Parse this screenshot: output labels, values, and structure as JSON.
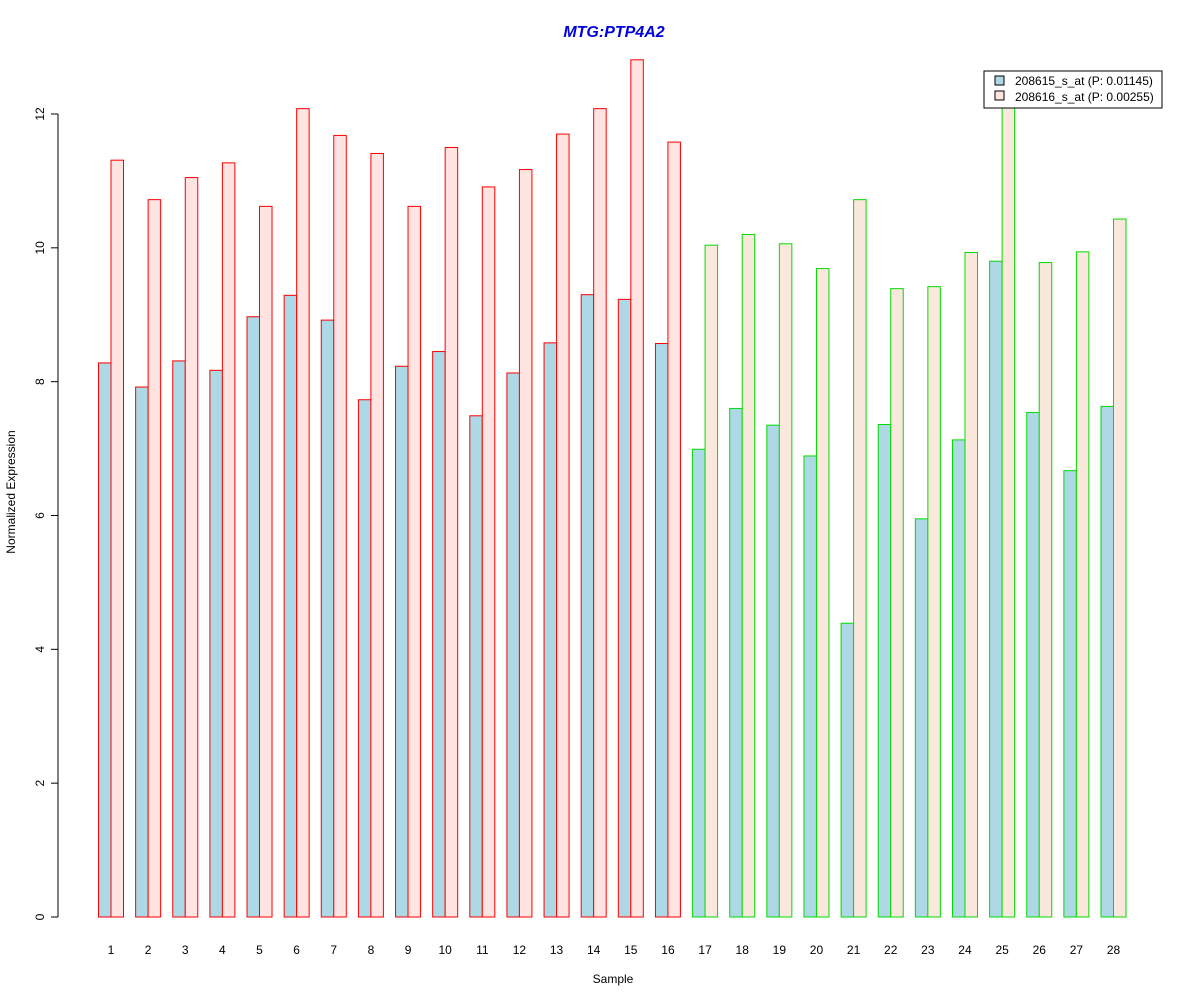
{
  "chart_data": {
    "type": "bar",
    "title": "MTG:PTP4A2",
    "xlabel": "Sample",
    "ylabel": "Normalized Expression",
    "ylim": [
      0,
      12.8
    ],
    "yticks": [
      0,
      2,
      4,
      6,
      8,
      10,
      12
    ],
    "grid": false,
    "legend_position": "top-right",
    "categories": [
      "1",
      "2",
      "3",
      "4",
      "5",
      "6",
      "7",
      "8",
      "9",
      "10",
      "11",
      "12",
      "13",
      "14",
      "15",
      "16",
      "17",
      "18",
      "19",
      "20",
      "21",
      "22",
      "23",
      "24",
      "25",
      "26",
      "27",
      "28"
    ],
    "series": [
      {
        "name": "208615_s_at (P: 0.01145)",
        "fill": "#add8e6",
        "values": [
          8.28,
          7.92,
          8.31,
          8.17,
          8.97,
          9.29,
          8.92,
          7.73,
          8.23,
          8.45,
          7.49,
          8.13,
          8.58,
          9.3,
          9.23,
          8.57,
          6.99,
          7.6,
          7.35,
          6.89,
          4.39,
          7.36,
          5.95,
          7.13,
          9.8,
          7.54,
          6.67,
          7.63
        ]
      },
      {
        "name": "208616_s_at (P: 0.00255)",
        "fill_group1": "#ffe4e1",
        "fill_group2": "#fae8dc",
        "values": [
          11.31,
          10.72,
          11.05,
          11.27,
          10.62,
          12.08,
          11.68,
          11.41,
          10.62,
          11.5,
          10.91,
          11.17,
          11.7,
          12.08,
          12.81,
          11.58,
          10.04,
          10.2,
          10.06,
          9.69,
          10.72,
          9.39,
          9.42,
          9.93,
          12.2,
          9.78,
          9.94,
          10.43
        ]
      }
    ],
    "groups": [
      {
        "samples_from": 1,
        "samples_to": 16,
        "border": "#ff0000"
      },
      {
        "samples_from": 17,
        "samples_to": 28,
        "border": "#00dd00"
      }
    ],
    "colors": {
      "title": "#0000dd",
      "axis": "#000000",
      "legend_border": "#000000"
    }
  }
}
